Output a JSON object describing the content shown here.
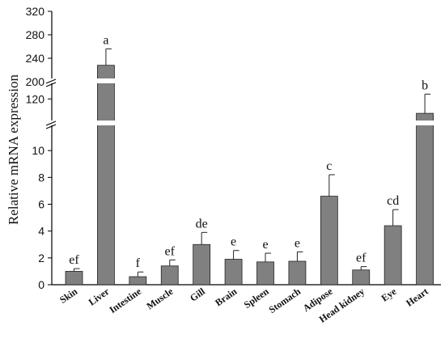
{
  "chart_data": {
    "type": "bar",
    "ylabel": "Relative mRNA expression",
    "categories": [
      "Skin",
      "Liver",
      "Intestine",
      "Muscle",
      "Gill",
      "Brain",
      "Spleen",
      "Stomach",
      "Adipose",
      "Head kidney",
      "Eye",
      "Heart"
    ],
    "values": [
      1.0,
      228,
      0.6,
      1.4,
      3.0,
      1.9,
      1.7,
      1.75,
      6.6,
      1.1,
      4.4,
      108
    ],
    "error_upper": [
      1.2,
      256,
      0.95,
      1.85,
      3.9,
      2.55,
      2.35,
      2.45,
      8.2,
      1.35,
      5.6,
      124
    ],
    "significance": [
      "ef",
      "a",
      "f",
      "ef",
      "de",
      "e",
      "e",
      "e",
      "c",
      "ef",
      "cd",
      "b"
    ],
    "y_segments": [
      {
        "range": [
          0,
          12
        ],
        "ticks": [
          0,
          2,
          4,
          6,
          8,
          10
        ]
      },
      {
        "range": [
          100,
          135
        ],
        "ticks": [
          120
        ]
      },
      {
        "range": [
          200,
          320
        ],
        "ticks": [
          200,
          240,
          280,
          320
        ]
      }
    ],
    "axis_breaks": [
      12,
      200
    ],
    "bar_color": "#808080",
    "grid": false,
    "legend": "none"
  }
}
